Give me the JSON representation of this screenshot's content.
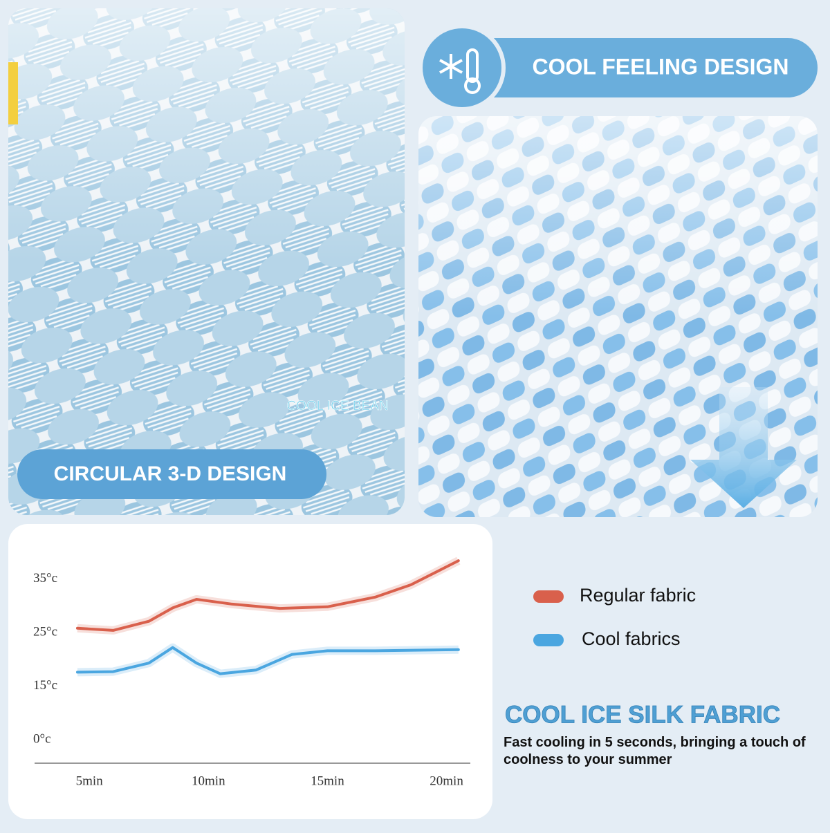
{
  "header": {
    "title": "COOL FEELING DESIGN"
  },
  "left_photo": {
    "badge": "CIRCULAR 3-D DESIGN",
    "caption": "COOL ICE BEAN"
  },
  "footer": {
    "title": "COOL ICE SILK FABRIC",
    "text": "Fast cooling in 5 seconds, bringing a touch of coolness to your summer"
  },
  "chart_data": {
    "type": "line",
    "xlim": [
      2.7,
      21
    ],
    "xticks": [
      {
        "value": 5,
        "label": "5min"
      },
      {
        "value": 10,
        "label": "10min"
      },
      {
        "value": 15,
        "label": "15min"
      },
      {
        "value": 20,
        "label": "20min"
      }
    ],
    "ylim": [
      0,
      40
    ],
    "yticks": [
      {
        "value": 0,
        "label": "0°c"
      },
      {
        "value": 15,
        "label": "15°c"
      },
      {
        "value": 25,
        "label": "25°c"
      },
      {
        "value": 35,
        "label": "35°c"
      }
    ],
    "series": [
      {
        "name": "Regular fabric",
        "color": "#d9604c",
        "x": [
          4.5,
          6,
          7.5,
          8.5,
          9.5,
          11,
          13,
          15,
          17,
          18.5,
          20.5
        ],
        "values": [
          25.8,
          25.4,
          27.1,
          29.6,
          31.2,
          30.3,
          29.5,
          29.8,
          31.6,
          33.9,
          38.4
        ]
      },
      {
        "name": "Cool fabrics",
        "color": "#4aa6e0",
        "x": [
          4.5,
          6,
          7.5,
          8.5,
          9.5,
          10.5,
          12,
          13.5,
          15,
          17,
          20.5
        ],
        "values": [
          17.6,
          17.7,
          19.3,
          22.2,
          19.3,
          17.3,
          18.0,
          20.9,
          21.6,
          21.6,
          21.8
        ]
      }
    ]
  }
}
